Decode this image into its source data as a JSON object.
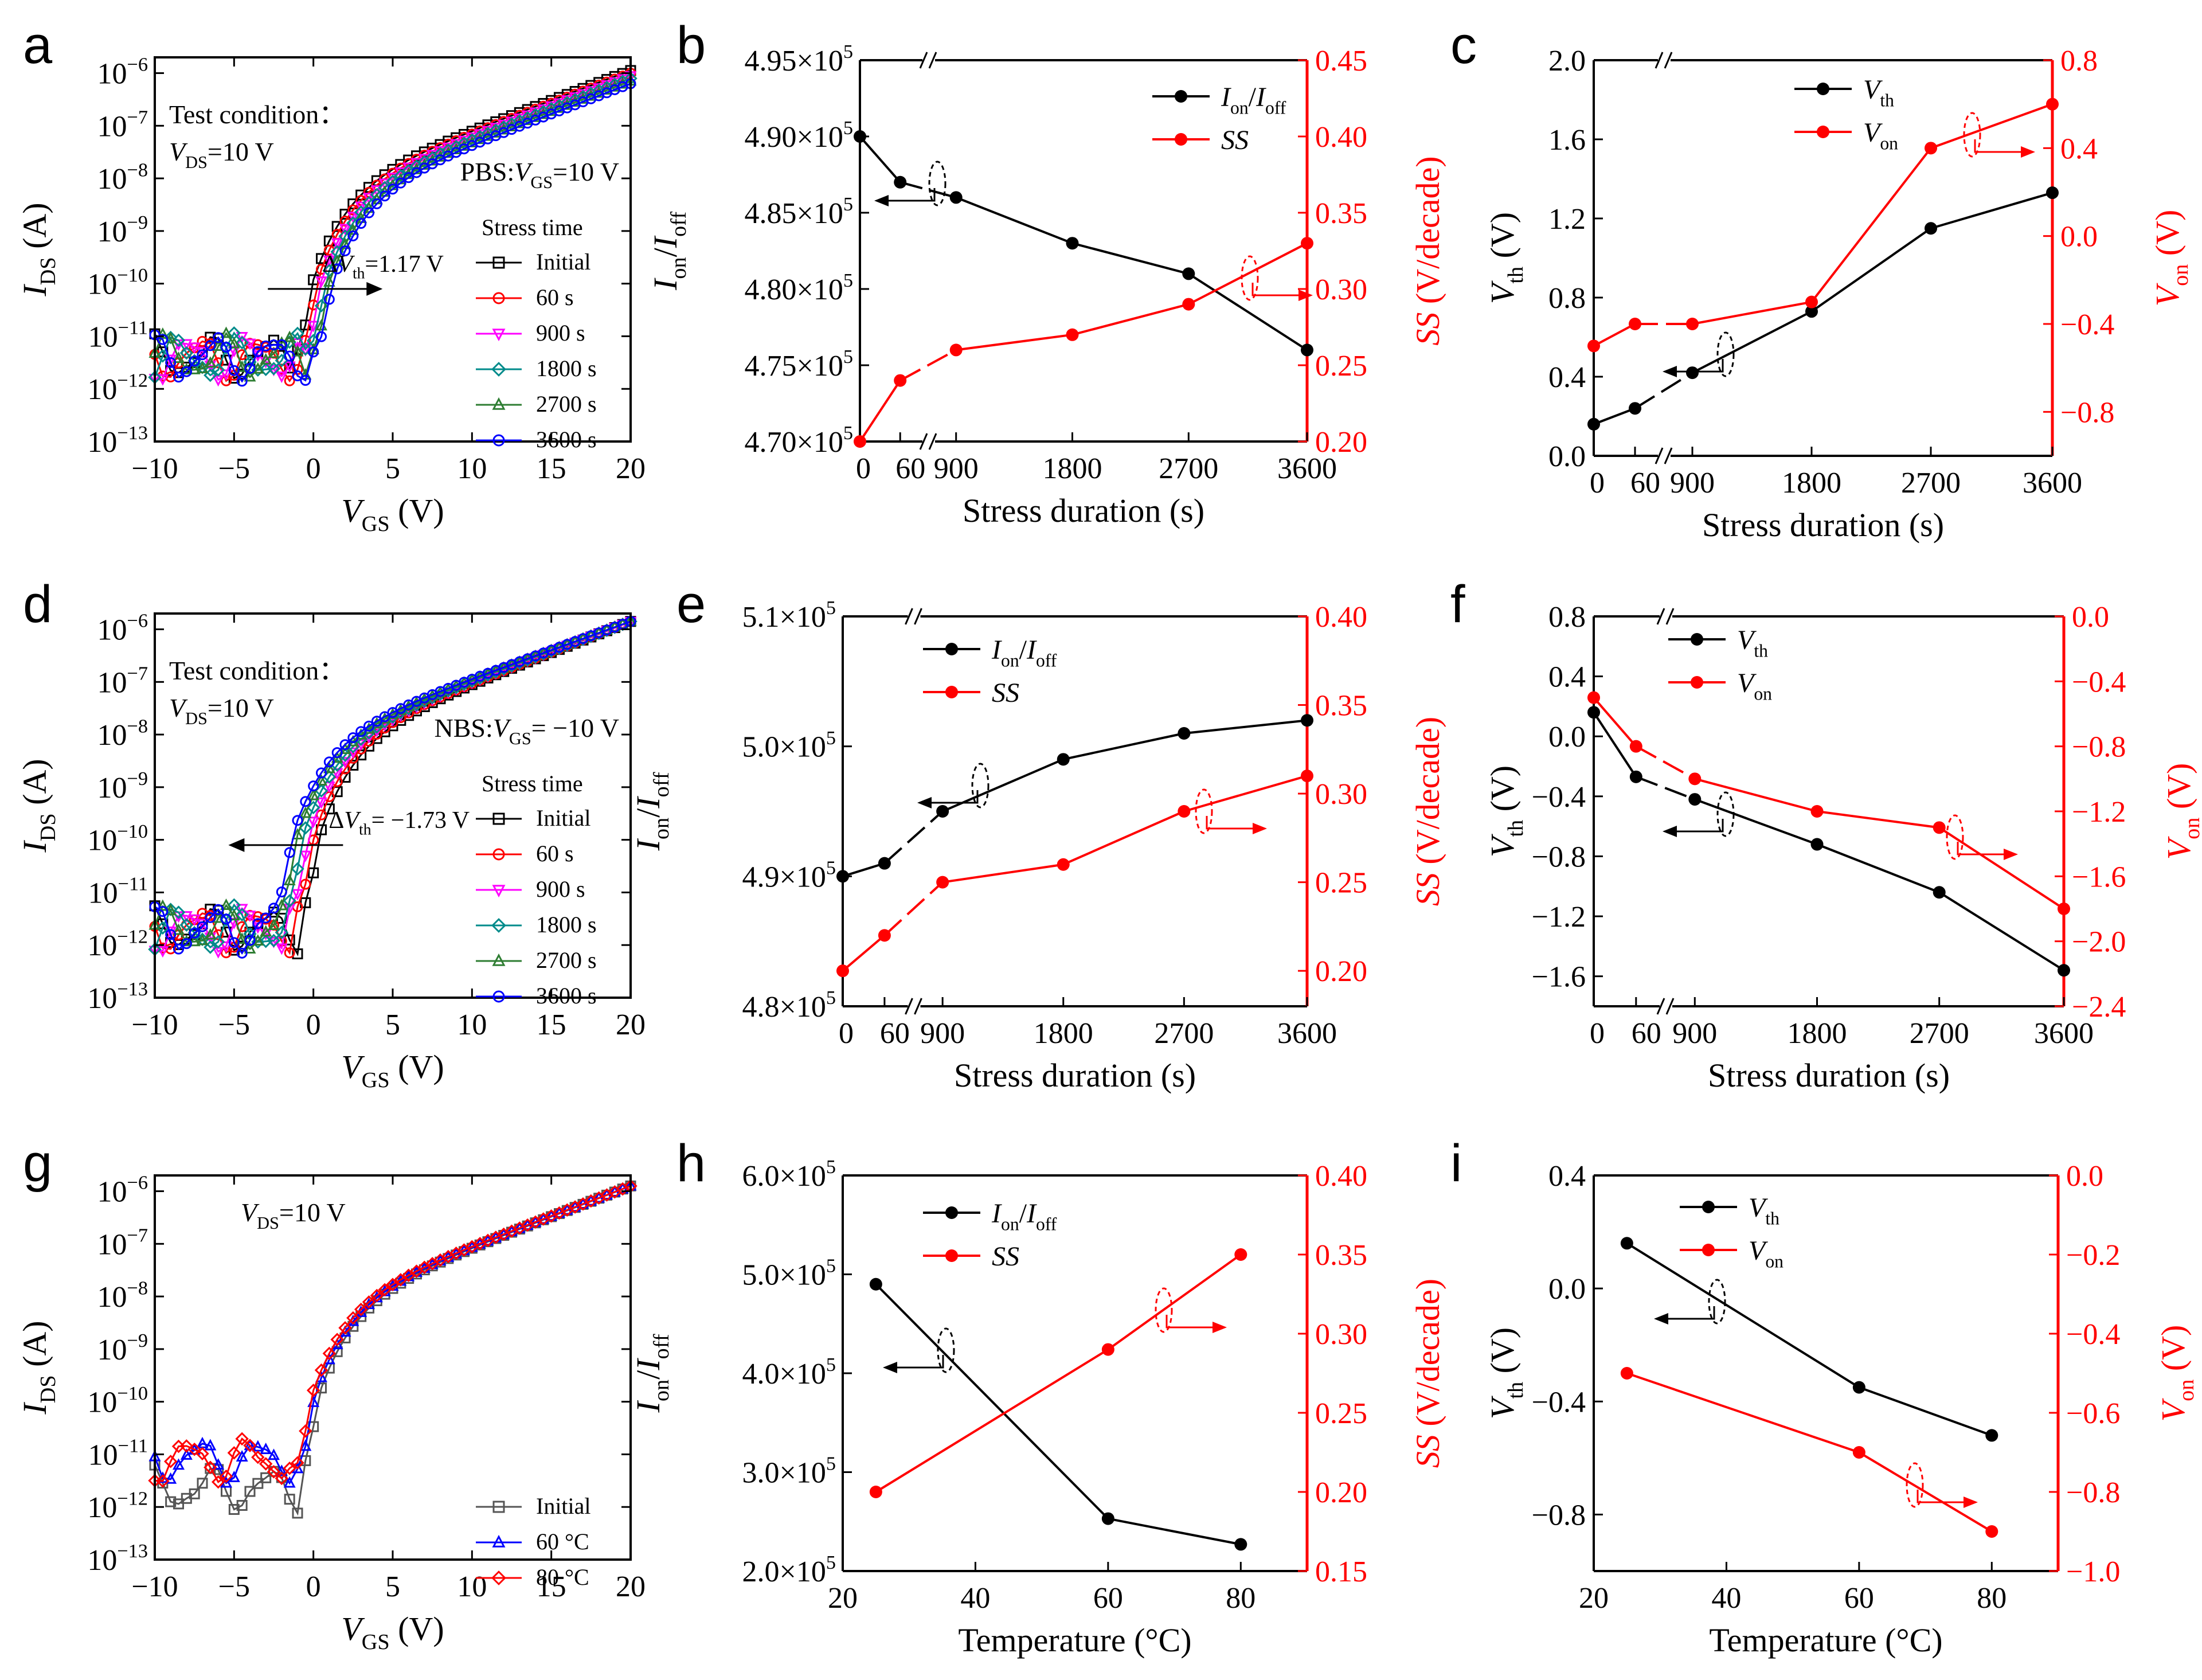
{
  "colors": {
    "black": "#000000",
    "red": "#ff0000",
    "blue": "#0000ff",
    "magenta": "#ff00ff",
    "teal": "#008b8b",
    "green": "#2e7d32",
    "gray": "#555555"
  },
  "chart_data": [
    {
      "panel": "a",
      "type": "line",
      "xlabel_main": "V",
      "xlabel_sub": "GS",
      "xlabel_unit": " (V)",
      "ylabel_main": "I",
      "ylabel_sub": "DS",
      "ylabel_unit": " (A)",
      "xlim": [
        -10,
        20
      ],
      "ylim_log10": [
        -13,
        -5.7
      ],
      "x_ticks": [
        "−10",
        "−5",
        "0",
        "5",
        "10",
        "15",
        "20"
      ],
      "y_tick_exponents": [
        "−13",
        "−12",
        "−11",
        "−10",
        "−9",
        "−8",
        "−7",
        "−6"
      ],
      "annotations": [
        "Test condition：",
        "V_DS=10 V",
        "PBS:V_GS=10 V"
      ],
      "legend_title": "Stress time",
      "legend": [
        "Initial",
        "60 s",
        "900 s",
        "1800 s",
        "2700 s",
        "3600 s"
      ],
      "delta_label": "ΔV_th=1.17 V",
      "series_shift_v": [
        0,
        0.25,
        0.5,
        0.75,
        1.0,
        1.17
      ],
      "off_current_log10": -11.4,
      "on_current_log10_at_20v": -5.95,
      "turn_on_voltage_v": -1.2
    },
    {
      "panel": "b",
      "type": "line",
      "dual_axis": true,
      "xlabel": "Stress duration (s)",
      "x_ticks": [
        "0",
        "60",
        "900",
        "1800",
        "2700",
        "3600"
      ],
      "x": [
        0,
        60,
        900,
        1800,
        2700,
        3600
      ],
      "ylim_left": [
        470000,
        495000
      ],
      "ylim_right": [
        0.2,
        0.45
      ],
      "y_left_ticks": [
        "4.70×10",
        "4.75×10",
        "4.80×10",
        "4.85×10",
        "4.90×10",
        "4.95×10"
      ],
      "y_right_ticks": [
        "0.20",
        "0.25",
        "0.30",
        "0.35",
        "0.40",
        "0.45"
      ],
      "series": [
        {
          "name": "I_on/I_off",
          "axis": "left",
          "values": [
            490000,
            487000,
            486000,
            483000,
            481000,
            476000
          ]
        },
        {
          "name": "SS",
          "axis": "right",
          "values": [
            0.2,
            0.24,
            0.26,
            0.27,
            0.29,
            0.33
          ]
        }
      ],
      "ylabel_left": "I_on/I_off",
      "ylabel_right": "SS (V/decade)"
    },
    {
      "panel": "c",
      "type": "line",
      "dual_axis": true,
      "xlabel": "Stress duration (s)",
      "x_ticks": [
        "0",
        "60",
        "900",
        "1800",
        "2700",
        "3600"
      ],
      "x": [
        0,
        60,
        900,
        1800,
        2700,
        3600
      ],
      "ylim_left": [
        0.0,
        2.0
      ],
      "ylim_right": [
        -1.0,
        0.8
      ],
      "y_left_ticks": [
        "0.0",
        "0.4",
        "0.8",
        "1.2",
        "1.6",
        "2.0"
      ],
      "y_right_ticks": [
        "−0.8",
        "−0.4",
        "0.0",
        "0.4",
        "0.8"
      ],
      "series": [
        {
          "name": "V_th",
          "axis": "left",
          "values": [
            0.16,
            0.24,
            0.42,
            0.73,
            1.15,
            1.33
          ]
        },
        {
          "name": "V_on",
          "axis": "right",
          "values": [
            -0.5,
            -0.4,
            -0.4,
            -0.3,
            0.4,
            0.6
          ]
        }
      ],
      "ylabel_left": "V_th (V)",
      "ylabel_right": "V_on (V)"
    },
    {
      "panel": "d",
      "type": "line",
      "xlabel_main": "V",
      "xlabel_sub": "GS",
      "xlabel_unit": " (V)",
      "ylabel_main": "I",
      "ylabel_sub": "DS",
      "ylabel_unit": " (A)",
      "xlim": [
        -10,
        20
      ],
      "ylim_log10": [
        -13,
        -5.7
      ],
      "x_ticks": [
        "−10",
        "−5",
        "0",
        "5",
        "10",
        "15",
        "20"
      ],
      "y_tick_exponents": [
        "−13",
        "−12",
        "−11",
        "−10",
        "−9",
        "−8",
        "−7",
        "−6"
      ],
      "annotations": [
        "Test condition：",
        "V_DS=10 V",
        "NBS:V_GS= −10 V"
      ],
      "legend_title": "Stress time",
      "legend": [
        "Initial",
        "60 s",
        "900 s",
        "1800 s",
        "2700 s",
        "3600 s"
      ],
      "delta_label": "ΔV_th= −1.73 V",
      "series_shift_v": [
        0,
        -0.35,
        -0.7,
        -1.05,
        -1.4,
        -1.73
      ],
      "off_current_log10": -11.7,
      "on_current_log10_at_20v": -5.85,
      "turn_on_voltage_v": -0.8
    },
    {
      "panel": "e",
      "type": "line",
      "dual_axis": true,
      "xlabel": "Stress duration (s)",
      "x_ticks": [
        "0",
        "60",
        "900",
        "1800",
        "2700",
        "3600"
      ],
      "x": [
        0,
        60,
        900,
        1800,
        2700,
        3600
      ],
      "ylim_left": [
        480000,
        510000
      ],
      "ylim_right": [
        0.18,
        0.4
      ],
      "y_left_ticks": [
        "4.8×10",
        "4.9×10",
        "5.0×10",
        "5.1×10"
      ],
      "y_right_ticks": [
        "0.20",
        "0.25",
        "0.30",
        "0.35",
        "0.40"
      ],
      "series": [
        {
          "name": "I_on/I_off",
          "axis": "left",
          "values": [
            490000,
            491000,
            495000,
            499000,
            501000,
            502000
          ]
        },
        {
          "name": "SS",
          "axis": "right",
          "values": [
            0.2,
            0.22,
            0.25,
            0.26,
            0.29,
            0.31
          ]
        }
      ],
      "ylabel_left": "I_on/I_off",
      "ylabel_right": "SS (V/decade)"
    },
    {
      "panel": "f",
      "type": "line",
      "dual_axis": true,
      "xlabel": "Stress duration (s)",
      "x_ticks": [
        "0",
        "60",
        "900",
        "1800",
        "2700",
        "3600"
      ],
      "x": [
        0,
        60,
        900,
        1800,
        2700,
        3600
      ],
      "ylim_left": [
        -1.8,
        0.8
      ],
      "ylim_right": [
        -2.4,
        0.0
      ],
      "y_left_ticks": [
        "−1.6",
        "−1.2",
        "−0.8",
        "−0.4",
        "0.0",
        "0.4",
        "0.8"
      ],
      "y_right_ticks": [
        "−2.4",
        "−2.0",
        "−1.6",
        "−1.2",
        "−0.8",
        "−0.4",
        "0.0"
      ],
      "series": [
        {
          "name": "V_th",
          "axis": "left",
          "values": [
            0.16,
            -0.27,
            -0.42,
            -0.72,
            -1.04,
            -1.56
          ]
        },
        {
          "name": "V_on",
          "axis": "right",
          "values": [
            -0.5,
            -0.8,
            -1.0,
            -1.2,
            -1.3,
            -1.8
          ]
        }
      ],
      "ylabel_left": "V_th (V)",
      "ylabel_right": "V_on (V)"
    },
    {
      "panel": "g",
      "type": "line",
      "xlabel_main": "V",
      "xlabel_sub": "GS",
      "xlabel_unit": " (V)",
      "ylabel_main": "I",
      "ylabel_sub": "DS",
      "ylabel_unit": " (A)",
      "xlim": [
        -10,
        20
      ],
      "ylim_log10": [
        -13,
        -5.7
      ],
      "x_ticks": [
        "−10",
        "−5",
        "0",
        "5",
        "10",
        "15",
        "20"
      ],
      "y_tick_exponents": [
        "−13",
        "−12",
        "−11",
        "−10",
        "−9",
        "−8",
        "−7",
        "−6"
      ],
      "annotations": [
        "V_DS=10 V"
      ],
      "legend": [
        "Initial",
        "60 °C",
        "80 °C"
      ],
      "series_shift_v": [
        0,
        -0.25,
        -0.45
      ],
      "off_current_log10": -11.4,
      "on_current_log10_at_20v": -5.9,
      "turn_on_voltage_v": -0.9
    },
    {
      "panel": "h",
      "type": "line",
      "dual_axis": true,
      "xlabel": "Temperature (°C)",
      "x_ticks": [
        "20",
        "40",
        "60",
        "80"
      ],
      "xlim": [
        20,
        90
      ],
      "x": [
        25,
        60,
        80
      ],
      "ylim_left": [
        200000,
        600000
      ],
      "ylim_right": [
        0.15,
        0.4
      ],
      "y_left_ticks": [
        "2.0×10",
        "3.0×10",
        "4.0×10",
        "5.0×10",
        "6.0×10"
      ],
      "y_right_ticks": [
        "0.15",
        "0.20",
        "0.25",
        "0.30",
        "0.35",
        "0.40"
      ],
      "series": [
        {
          "name": "I_on/I_off",
          "axis": "left",
          "values": [
            490000,
            253000,
            227000
          ]
        },
        {
          "name": "SS",
          "axis": "right",
          "values": [
            0.2,
            0.29,
            0.35
          ]
        }
      ],
      "ylabel_left": "I_on/I_off",
      "ylabel_right": "SS (V/decade)"
    },
    {
      "panel": "i",
      "type": "line",
      "dual_axis": true,
      "xlabel": "Temperature (°C)",
      "x_ticks": [
        "20",
        "40",
        "60",
        "80"
      ],
      "xlim": [
        20,
        90
      ],
      "x": [
        25,
        60,
        80
      ],
      "ylim_left": [
        -1.0,
        0.4
      ],
      "ylim_right": [
        -1.0,
        0.0
      ],
      "y_left_ticks": [
        "−0.8",
        "−0.4",
        "0.0",
        "0.4"
      ],
      "y_right_ticks": [
        "−1.0",
        "−0.8",
        "−0.6",
        "−0.4",
        "−0.2",
        "0.0"
      ],
      "series": [
        {
          "name": "V_th",
          "axis": "left",
          "values": [
            0.16,
            -0.35,
            -0.52
          ]
        },
        {
          "name": "V_on",
          "axis": "right",
          "values": [
            -0.5,
            -0.7,
            -0.9
          ]
        }
      ],
      "ylabel_left": "V_th (V)",
      "ylabel_right": "V_on (V)"
    }
  ]
}
